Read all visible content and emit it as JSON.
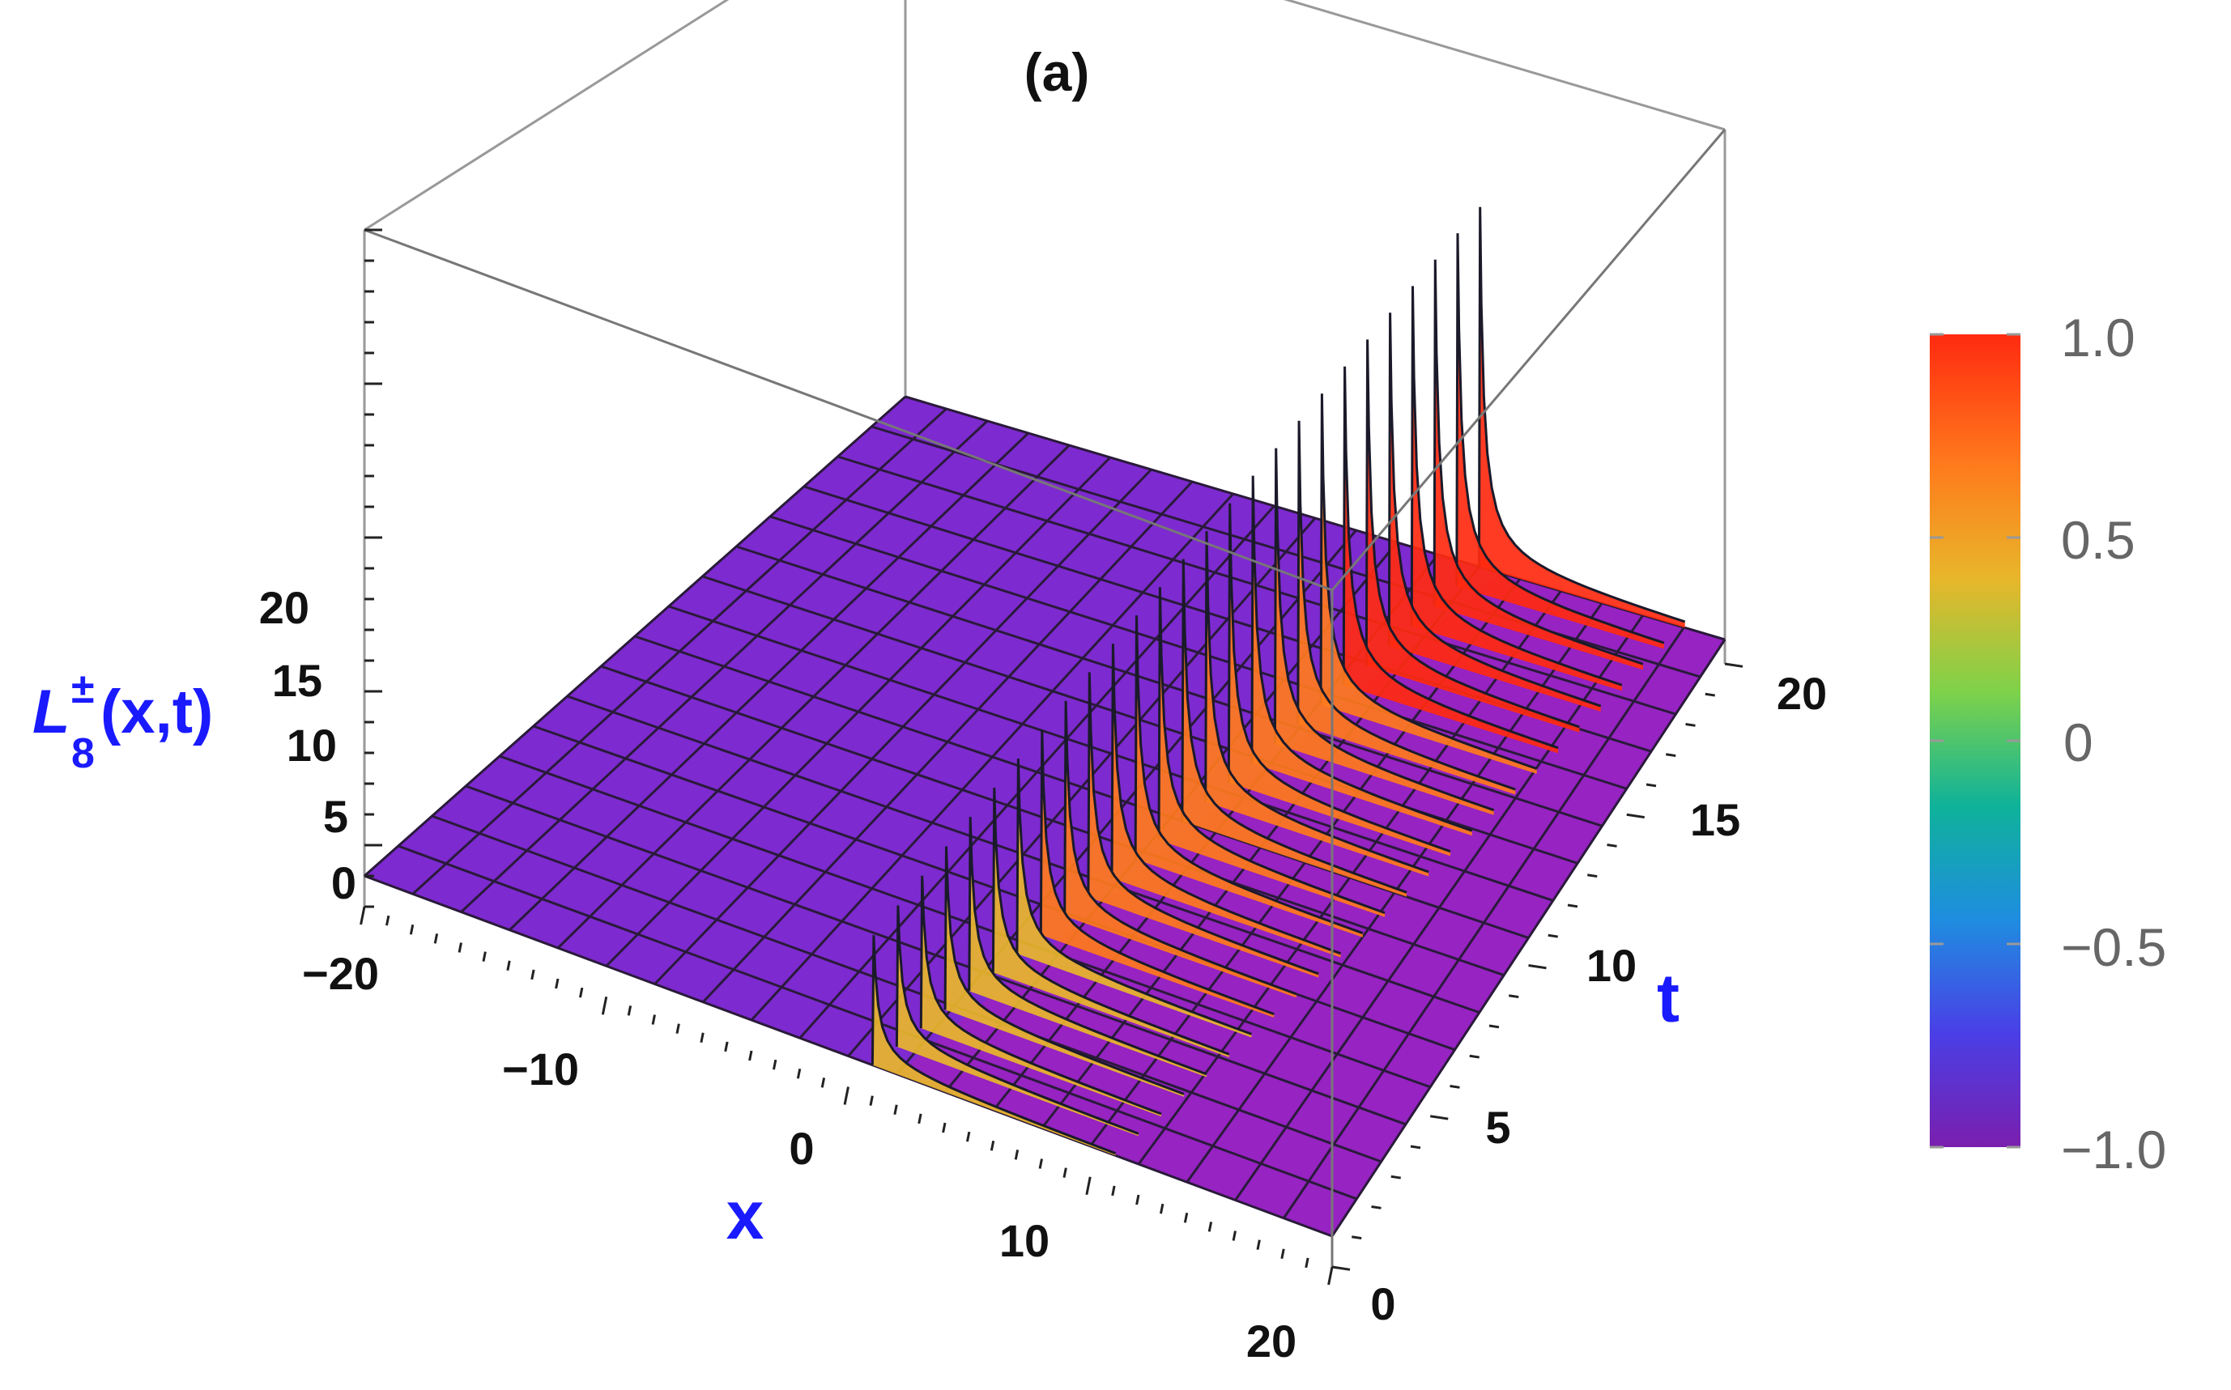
{
  "chart_data": {
    "type": "surface3d",
    "title": "(a)",
    "xlabel": "x",
    "ylabel": "t",
    "zlabel": "L",
    "zlabel_sub": "8",
    "zlabel_sup": "±",
    "zlabel_args": "(x,t)",
    "xlim": [
      -20,
      20
    ],
    "ylim": [
      0,
      20
    ],
    "zlim": [
      -2,
      20
    ],
    "x_ticks": [
      "−20",
      "−10",
      "0",
      "10",
      "20"
    ],
    "x_tick_values": [
      -20,
      -10,
      0,
      10,
      20
    ],
    "y_ticks": [
      "0",
      "5",
      "10",
      "15",
      "20"
    ],
    "y_tick_values": [
      0,
      5,
      10,
      15,
      20
    ],
    "z_ticks": [
      "0",
      "5",
      "10",
      "15",
      "20"
    ],
    "z_tick_values": [
      0,
      5,
      10,
      15,
      20
    ],
    "surface": {
      "baseline": -1,
      "singularity_x_at_t0": 1,
      "singularity_x_at_t20": 8,
      "peak_height_at_t0": 5,
      "peak_height_at_t20": 20,
      "sheared_side": "right"
    },
    "colorbar": {
      "ticks": [
        "1.0",
        "0.5",
        "0",
        "−0.5",
        "−1.0"
      ],
      "tick_values": [
        1.0,
        0.5,
        0,
        -0.5,
        -1.0
      ],
      "colors": [
        "#ff2a10",
        "#ff7a1c",
        "#e8b62a",
        "#7ed24a",
        "#0fb29a",
        "#1f8de0",
        "#4a3fe6",
        "#7a1fae"
      ]
    }
  }
}
